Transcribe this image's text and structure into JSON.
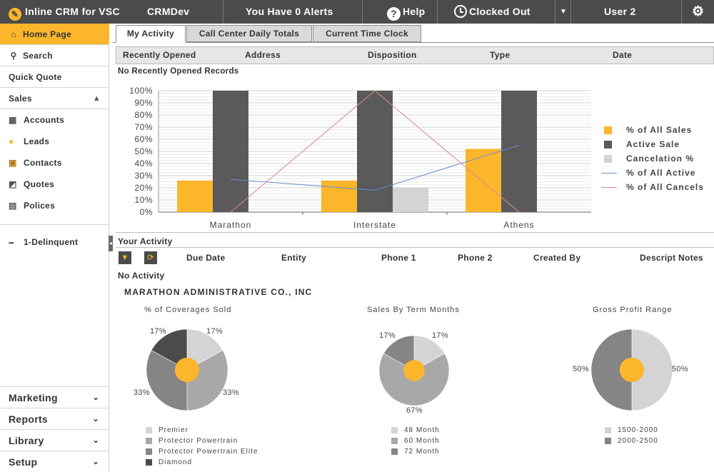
{
  "topbar": {
    "app_title": "Inline CRM for VSC",
    "env": "CRMDev",
    "alerts": "You Have 0 Alerts",
    "help": "Help",
    "clock_status": "Clocked Out",
    "user": "User 2"
  },
  "sidebar": {
    "items": [
      {
        "label": "Home Page",
        "icon": "home-icon"
      },
      {
        "label": "Search",
        "icon": "search-icon"
      },
      {
        "label": "Quick Quote"
      },
      {
        "label": "Sales",
        "icon": "chevron-up-icon"
      }
    ],
    "sales_items": [
      {
        "label": "Accounts",
        "icon": "accounts-icon"
      },
      {
        "label": "Leads",
        "icon": "leads-icon"
      },
      {
        "label": "Contacts",
        "icon": "contacts-icon"
      },
      {
        "label": "Quotes",
        "icon": "quotes-icon"
      },
      {
        "label": "Polices",
        "icon": "polices-icon"
      }
    ],
    "delinquent": "1-Delinquent",
    "bottom": [
      {
        "label": "Marketing"
      },
      {
        "label": "Reports"
      },
      {
        "label": "Library"
      },
      {
        "label": "Setup"
      }
    ]
  },
  "tabs": [
    {
      "label": "My Activity",
      "active": true
    },
    {
      "label": "Call Center Daily Totals",
      "active": false
    },
    {
      "label": "Current Time Clock",
      "active": false
    }
  ],
  "recent": {
    "columns": [
      "Recently Opened",
      "Address",
      "Disposition",
      "Type",
      "Date"
    ],
    "empty": "No Recently Opened Records"
  },
  "colors": {
    "accent": "#fbb62b",
    "dark": "#5a5a5a",
    "light": "#d4d4d4",
    "blue_line": "#6b8ccc",
    "red_line": "#d98a8a"
  },
  "chart_data": [
    {
      "type": "bar",
      "categories": [
        "Marathon",
        "Interstate",
        "Athens"
      ],
      "ylim": [
        0,
        100
      ],
      "yticks": [
        "0%",
        "10%",
        "20%",
        "30%",
        "40%",
        "50%",
        "60%",
        "70%",
        "80%",
        "90%",
        "100%"
      ],
      "series": [
        {
          "name": "% of All Sales",
          "kind": "bar",
          "color": "#fbb62b",
          "values": [
            26,
            26,
            52
          ]
        },
        {
          "name": "Active Sale",
          "kind": "bar",
          "color": "#5a5a5a",
          "values": [
            100,
            100,
            100
          ]
        },
        {
          "name": "Cancelation %",
          "kind": "bar",
          "color": "#d4d4d4",
          "values": [
            0,
            20,
            0
          ]
        },
        {
          "name": "% of All Active",
          "kind": "line",
          "color": "#6b8ccc",
          "values": [
            27,
            18,
            55
          ]
        },
        {
          "name": "% of All Cancels",
          "kind": "line",
          "color": "#d98a8a",
          "values": [
            0,
            100,
            0
          ]
        }
      ]
    },
    {
      "type": "pie",
      "title": "% of Coverages Sold",
      "labels": [
        "Premier",
        "Protector Powertrain",
        "Protector Powertrain Elite",
        "Diamond"
      ],
      "values": [
        17,
        33,
        33,
        17
      ],
      "pct_labels": [
        "17%",
        "33%",
        "33%",
        "17%"
      ],
      "colors": [
        "#d4d4d4",
        "#a8a8a8",
        "#858585",
        "#4b4b4b"
      ]
    },
    {
      "type": "pie",
      "title": "Sales By Term Months",
      "labels": [
        "48 Month",
        "60 Month",
        "72 Month"
      ],
      "values": [
        17,
        67,
        17
      ],
      "pct_labels": [
        "17%",
        "67%",
        "17%"
      ],
      "colors": [
        "#d4d4d4",
        "#a8a8a8",
        "#858585"
      ]
    },
    {
      "type": "pie",
      "title": "Gross Profit Range",
      "labels": [
        "1500-2000",
        "2000-2500"
      ],
      "values": [
        50,
        50
      ],
      "pct_labels": [
        "50%",
        "50%"
      ],
      "colors": [
        "#d4d4d4",
        "#858585"
      ]
    }
  ],
  "activity": {
    "title": "Your Activity",
    "columns": [
      "Due Date",
      "Entity",
      "Phone 1",
      "Phone 2",
      "Created By",
      "Descript Notes"
    ],
    "empty": "No Activity",
    "company": "MARATHON ADMINISTRATIVE CO., INC"
  }
}
